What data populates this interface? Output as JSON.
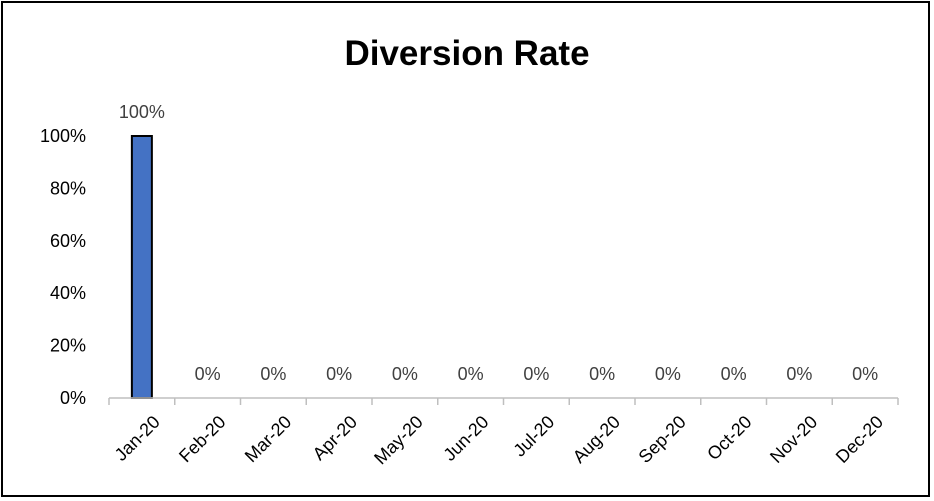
{
  "chart_data": {
    "type": "bar",
    "title": "Diversion Rate",
    "xlabel": "",
    "ylabel": "",
    "categories": [
      "Jan-20",
      "Feb-20",
      "Mar-20",
      "Apr-20",
      "May-20",
      "Jun-20",
      "Jul-20",
      "Aug-20",
      "Sep-20",
      "Oct-20",
      "Nov-20",
      "Dec-20"
    ],
    "values": [
      100,
      0,
      0,
      0,
      0,
      0,
      0,
      0,
      0,
      0,
      0,
      0
    ],
    "data_labels": [
      "100%",
      "0%",
      "0%",
      "0%",
      "0%",
      "0%",
      "0%",
      "0%",
      "0%",
      "0%",
      "0%",
      "0%"
    ],
    "ylim": [
      0,
      100
    ],
    "yticks": [
      0,
      20,
      40,
      60,
      80,
      100
    ],
    "ytick_labels": [
      "0%",
      "20%",
      "40%",
      "60%",
      "80%",
      "100%"
    ],
    "grid": false,
    "legend": "none",
    "colors": {
      "bar_fill": "#4472C4",
      "bar_stroke": "#000000",
      "axis": "#BFBFBF",
      "data_label": "#404040"
    }
  }
}
